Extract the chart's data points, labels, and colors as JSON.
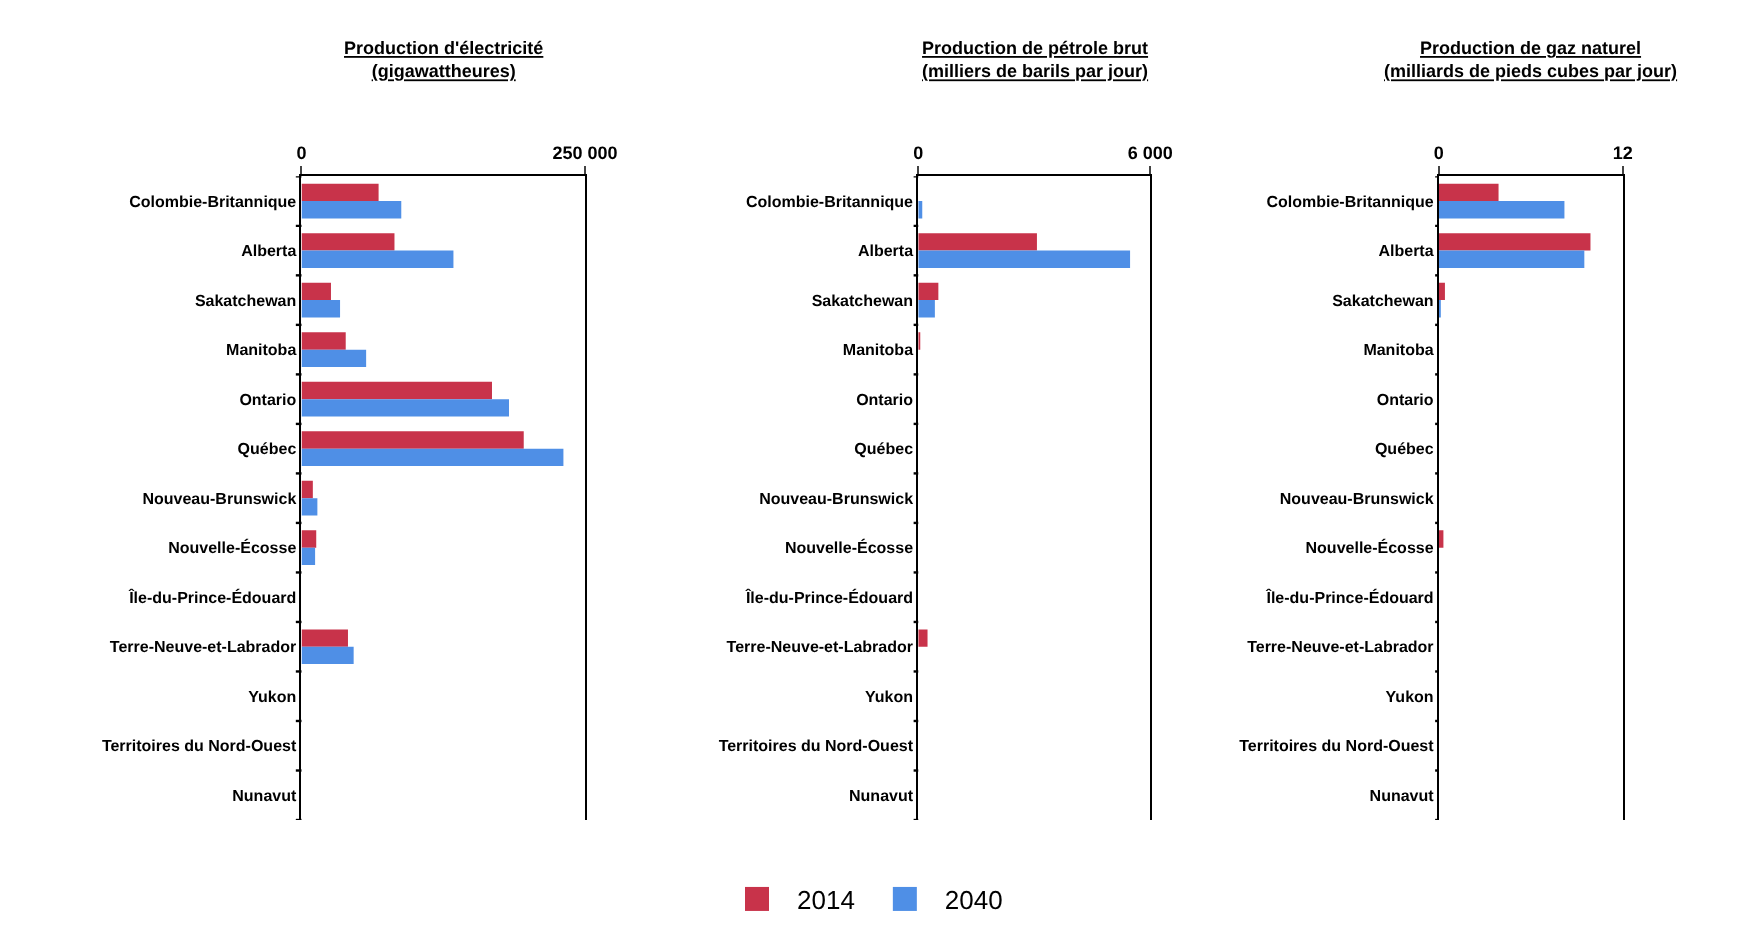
{
  "chart_data": [
    {
      "type": "bar",
      "orientation": "horizontal",
      "title": "Production d'électricité\n(gigawattheures)",
      "categories": [
        "Colombie-Britannique",
        "Alberta",
        "Sakatchewan",
        "Manitoba",
        "Ontario",
        "Québec",
        "Nouveau-Brunswick",
        "Nouvelle-Écosse",
        "Île-du-Prince-Édouard",
        "Terre-Neuve-et-Labrador",
        "Yukon",
        "Territoires du Nord-Ouest",
        "Nunavut"
      ],
      "series": [
        {
          "name": "2014",
          "color": "#c8334a",
          "values": [
            68000,
            82000,
            26000,
            39000,
            168000,
            196000,
            10000,
            13000,
            0,
            41000,
            0,
            0,
            0
          ]
        },
        {
          "name": "2040",
          "color": "#4f8fe6",
          "values": [
            88000,
            134000,
            34000,
            57000,
            183000,
            231000,
            14000,
            12000,
            0,
            46000,
            0,
            0,
            0
          ]
        }
      ],
      "xlim": [
        0,
        250000
      ],
      "xticks": [
        0,
        {
          "value": 250000,
          "label": "250 000"
        }
      ],
      "legend": "bottom"
    },
    {
      "type": "bar",
      "orientation": "horizontal",
      "title": "Production de pétrole brut\n(milliers de barils par jour)",
      "categories": [
        "Colombie-Britannique",
        "Alberta",
        "Sakatchewan",
        "Manitoba",
        "Ontario",
        "Québec",
        "Nouveau-Brunswick",
        "Nouvelle-Écosse",
        "Île-du-Prince-Édouard",
        "Terre-Neuve-et-Labrador",
        "Yukon",
        "Territoires du Nord-Ouest",
        "Nunavut"
      ],
      "series": [
        {
          "name": "2014",
          "color": "#c8334a",
          "values": [
            null,
            3070,
            520,
            50,
            0,
            0,
            0,
            0,
            0,
            240,
            0,
            0,
            0
          ]
        },
        {
          "name": "2040",
          "color": "#4f8fe6",
          "values": [
            60,
            5480,
            430,
            0,
            0,
            0,
            0,
            0,
            0,
            null,
            0,
            0,
            0
          ]
        }
      ],
      "xlim": [
        0,
        6000
      ],
      "xticks": [
        0,
        {
          "value": 6000,
          "label": "6 000"
        }
      ],
      "legend": "bottom"
    },
    {
      "type": "bar",
      "orientation": "horizontal",
      "title": "Production de gaz naturel\n(milliards de pieds cubes par jour)",
      "categories": [
        "Colombie-Britannique",
        "Alberta",
        "Sakatchewan",
        "Manitoba",
        "Ontario",
        "Québec",
        "Nouveau-Brunswick",
        "Nouvelle-Écosse",
        "Île-du-Prince-Édouard",
        "Terre-Neuve-et-Labrador",
        "Yukon",
        "Territoires du Nord-Ouest",
        "Nunavut"
      ],
      "series": [
        {
          "name": "2014",
          "color": "#c8334a",
          "values": [
            3.9,
            9.9,
            0.4,
            0,
            0,
            0,
            0,
            0.3,
            0,
            0,
            0,
            0,
            0
          ]
        },
        {
          "name": "2040",
          "color": "#4f8fe6",
          "values": [
            8.2,
            9.5,
            0.1,
            0,
            0,
            0,
            0,
            0,
            0,
            0,
            0,
            0,
            0
          ]
        }
      ],
      "xlim": [
        0,
        12
      ],
      "xticks": [
        0,
        12
      ],
      "legend": "bottom"
    }
  ]
}
